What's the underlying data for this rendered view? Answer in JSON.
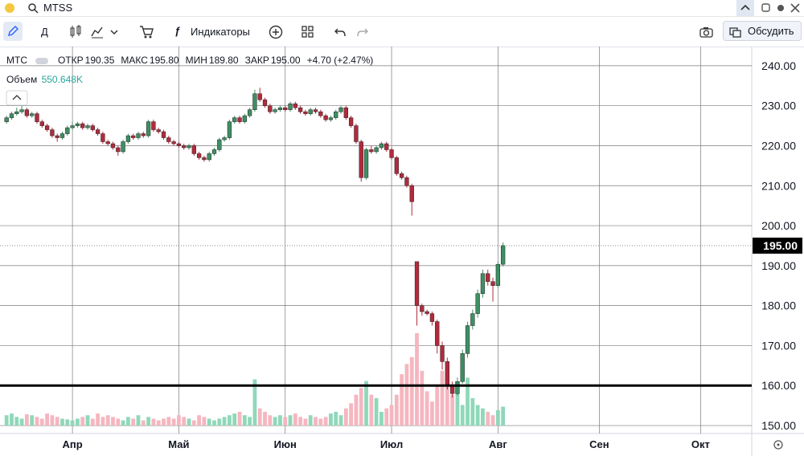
{
  "search": "MTSS",
  "toolbar": {
    "interval": "Д",
    "indicators": "Индикаторы",
    "discuss": "Обсудить"
  },
  "legend": {
    "symbol": "МТС",
    "items": [
      {
        "label": "ОТКР",
        "value": "190.35"
      },
      {
        "label": "МАКС",
        "value": "195.80"
      },
      {
        "label": "МИН",
        "value": "189.80"
      },
      {
        "label": "ЗАКР",
        "value": "195.00"
      }
    ],
    "change": "+4.70 (+2.47%)",
    "volume_label": "Объем",
    "volume_value": "550.648K"
  },
  "chart_data": {
    "type": "candlestick",
    "up_color": "#3e8f63",
    "down_color": "#b32a3c",
    "volume_up_color": "#8fd8ba",
    "volume_down_color": "#f5b6c0",
    "xlim": [
      -1.3,
      147.1
    ],
    "xticks": [
      {
        "value": 13,
        "label": "Апр"
      },
      {
        "value": 34,
        "label": "Май"
      },
      {
        "value": 55,
        "label": "Июн"
      },
      {
        "value": 76,
        "label": "Июл"
      },
      {
        "value": 97,
        "label": "Авг"
      },
      {
        "value": 117,
        "label": "Сен"
      },
      {
        "value": 137,
        "label": "Окт"
      }
    ],
    "ylim": [
      148,
      244.8
    ],
    "yticks": [
      {
        "value": 150,
        "label": "150.00"
      },
      {
        "value": 160,
        "label": "160.00"
      },
      {
        "value": 170,
        "label": "170.00"
      },
      {
        "value": 180,
        "label": "180.00"
      },
      {
        "value": 190,
        "label": "190.00"
      },
      {
        "value": 200,
        "label": "200.00"
      },
      {
        "value": 210,
        "label": "210.00"
      },
      {
        "value": 220,
        "label": "220.00"
      },
      {
        "value": 230,
        "label": "230.00"
      },
      {
        "value": 240,
        "label": "240.00"
      }
    ],
    "grid": true,
    "hline": 160,
    "last_price": {
      "value": 195,
      "label": "195.00"
    },
    "ohlc": [
      [
        226,
        227.5,
        225.5,
        227
      ],
      [
        227,
        228.5,
        226.5,
        228
      ],
      [
        228,
        229.5,
        227.5,
        228.5
      ],
      [
        228.5,
        230,
        228,
        229
      ],
      [
        229,
        229.5,
        227,
        227.5
      ],
      [
        227.5,
        228.5,
        227,
        228
      ],
      [
        228,
        228.5,
        225.5,
        226
      ],
      [
        226,
        226.5,
        224.5,
        225
      ],
      [
        225,
        225.5,
        223.5,
        224
      ],
      [
        224,
        224.5,
        222,
        222.5
      ],
      [
        222.5,
        223,
        221,
        222
      ],
      [
        222,
        223.5,
        221.5,
        223
      ],
      [
        223,
        225,
        222.5,
        224.5
      ],
      [
        224.5,
        226,
        224,
        225
      ],
      [
        225,
        226,
        224.5,
        225.5
      ],
      [
        225.5,
        226,
        224,
        224.5
      ],
      [
        224.5,
        225.5,
        224,
        225
      ],
      [
        225,
        225.5,
        223.5,
        224
      ],
      [
        224,
        224.5,
        222.5,
        223
      ],
      [
        223,
        223.5,
        220.5,
        221
      ],
      [
        221,
        221.5,
        220,
        220.5
      ],
      [
        220.5,
        221,
        219,
        219.5
      ],
      [
        219.5,
        220,
        217.5,
        218.5
      ],
      [
        218.5,
        221.5,
        218,
        221
      ],
      [
        221,
        223,
        220.5,
        222.5
      ],
      [
        222.5,
        223,
        221.5,
        222
      ],
      [
        222,
        223.5,
        221.5,
        223
      ],
      [
        223,
        223.5,
        222,
        222.5
      ],
      [
        222.5,
        226.5,
        222,
        226
      ],
      [
        226,
        226.5,
        223.5,
        224
      ],
      [
        224,
        224.5,
        223,
        223.5
      ],
      [
        223.5,
        224,
        221.5,
        222
      ],
      [
        222,
        222.5,
        220.5,
        221
      ],
      [
        221,
        221.5,
        220,
        220.5
      ],
      [
        220.5,
        221,
        219.5,
        220
      ],
      [
        220,
        220.5,
        219,
        219.5
      ],
      [
        219.5,
        220.5,
        219,
        220
      ],
      [
        220,
        220.5,
        217.5,
        218
      ],
      [
        218,
        218.5,
        216.5,
        217
      ],
      [
        217,
        217.5,
        216,
        216.5
      ],
      [
        216.5,
        218.5,
        216,
        218
      ],
      [
        218,
        219.5,
        217.5,
        219
      ],
      [
        219,
        222,
        218.5,
        221.5
      ],
      [
        221.5,
        222.5,
        221,
        222
      ],
      [
        222,
        226.5,
        221.5,
        226
      ],
      [
        226,
        227.5,
        225.5,
        227
      ],
      [
        227,
        227.5,
        225.5,
        226
      ],
      [
        226,
        228,
        225.5,
        227.5
      ],
      [
        227.5,
        229.5,
        227,
        229
      ],
      [
        229,
        234,
        228.5,
        233
      ],
      [
        233,
        234.5,
        231,
        231.5
      ],
      [
        231.5,
        232,
        229.5,
        230
      ],
      [
        230,
        230.5,
        228,
        228.5
      ],
      [
        228.5,
        229.5,
        228,
        229
      ],
      [
        229,
        230,
        228.5,
        229.5
      ],
      [
        229.5,
        230,
        228.5,
        229
      ],
      [
        229,
        231,
        228.5,
        230.5
      ],
      [
        230.5,
        231,
        229,
        229.5
      ],
      [
        229.5,
        230,
        228,
        228.5
      ],
      [
        228.5,
        229,
        227.5,
        228
      ],
      [
        228,
        229.5,
        227.5,
        229
      ],
      [
        229,
        229.5,
        228,
        228.5
      ],
      [
        228.5,
        229,
        227,
        227.5
      ],
      [
        227.5,
        228,
        226,
        226.5
      ],
      [
        226.5,
        227.5,
        226,
        227
      ],
      [
        227,
        229,
        226.5,
        228.5
      ],
      [
        228.5,
        230,
        228,
        229.5
      ],
      [
        229.5,
        230,
        226.5,
        227
      ],
      [
        227,
        227.5,
        224.5,
        225
      ],
      [
        225,
        225.5,
        220.5,
        221
      ],
      [
        221,
        221.5,
        211,
        212
      ],
      [
        212,
        219.5,
        211.5,
        219
      ],
      [
        219,
        220,
        218,
        218.5
      ],
      [
        218.5,
        220,
        218,
        219.5
      ],
      [
        219.5,
        221,
        219,
        220.5
      ],
      [
        220.5,
        221,
        218.5,
        219
      ],
      [
        219,
        219.5,
        216.5,
        217
      ],
      [
        217,
        217.5,
        212.5,
        213
      ],
      [
        213,
        213.5,
        211.5,
        212
      ],
      [
        212,
        212.5,
        209.5,
        210
      ],
      [
        210,
        210.5,
        202.5,
        206
      ],
      [
        191,
        191,
        175,
        180
      ],
      [
        180,
        180.5,
        177.5,
        178.5
      ],
      [
        178.5,
        179,
        177.5,
        178
      ],
      [
        178,
        178.5,
        175,
        176
      ],
      [
        176,
        176.5,
        168,
        170
      ],
      [
        170,
        171,
        164,
        166
      ],
      [
        166,
        167,
        159,
        160
      ],
      [
        160,
        161,
        157,
        158
      ],
      [
        158,
        162,
        157.5,
        161
      ],
      [
        161,
        169,
        160.5,
        168
      ],
      [
        168,
        176,
        167,
        175
      ],
      [
        175,
        179,
        174,
        178
      ],
      [
        178,
        184,
        177,
        183
      ],
      [
        183,
        189,
        182,
        188
      ],
      [
        188,
        189,
        185,
        186
      ],
      [
        186,
        187,
        181,
        185
      ],
      [
        185,
        191,
        184.5,
        190.3
      ],
      [
        190.35,
        195.8,
        189.8,
        195.0
      ]
    ],
    "volumes": [
      300,
      350,
      250,
      200,
      330,
      300,
      250,
      200,
      350,
      300,
      250,
      200,
      180,
      150,
      200,
      250,
      300,
      200,
      350,
      250,
      300,
      250,
      200,
      150,
      250,
      200,
      300,
      150,
      250,
      200,
      150,
      200,
      250,
      200,
      300,
      250,
      200,
      150,
      300,
      250,
      200,
      150,
      200,
      250,
      300,
      350,
      400,
      300,
      250,
      1350,
      500,
      400,
      300,
      250,
      300,
      250,
      300,
      350,
      250,
      200,
      300,
      250,
      200,
      250,
      350,
      400,
      300,
      500,
      650,
      900,
      1100,
      1300,
      900,
      800,
      400,
      500,
      600,
      900,
      1500,
      1800,
      2000,
      2700,
      1600,
      1000,
      700,
      1200,
      1600,
      1300,
      900,
      1100,
      600,
      1400,
      800,
      600,
      500,
      400,
      300,
      450,
      550.648
    ]
  }
}
